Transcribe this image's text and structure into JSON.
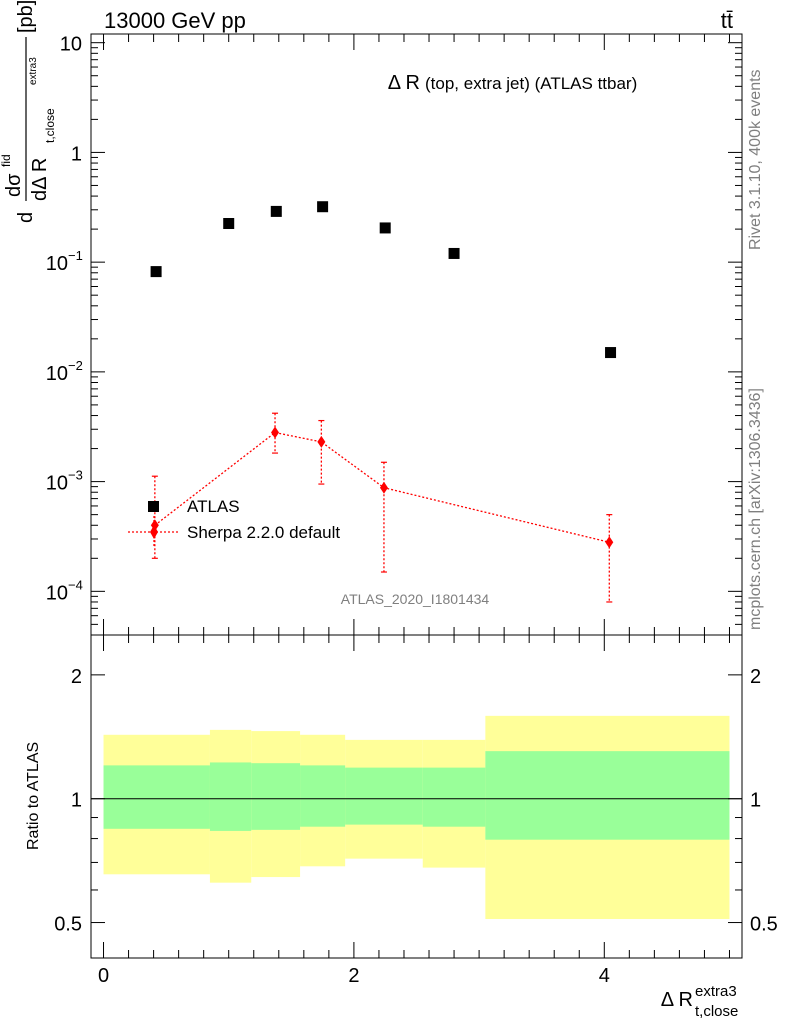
{
  "header": {
    "energy_label": "13000 GeV pp",
    "process_label": "tt̄",
    "rivet_label": "Rivet 3.1.10,  400k events",
    "mcplots_label": "mcplots.cern.ch [arXiv:1306.3436]"
  },
  "chart_data": [
    {
      "type": "scatter",
      "panel": "main",
      "title_main": "Δ R",
      "title_detail": "(top, extra jet) (ATLAS ttbar)",
      "ylabel": {
        "prefix": "d",
        "numerator": "dσ",
        "numerator_sup": "fid",
        "denominator": "dΔ R",
        "denominator_sub": "t,close",
        "denominator_sup": "extra3",
        "unit": "[pb]"
      },
      "yscale": "log",
      "ylim": [
        4e-05,
        12
      ],
      "xlim": [
        -0.1,
        5.1
      ],
      "y_ticks": [
        {
          "value": 10,
          "label": "10",
          "exp": ""
        },
        {
          "value": 1,
          "label": "1",
          "exp": ""
        },
        {
          "value": 0.1,
          "label": "10",
          "exp": "−1"
        },
        {
          "value": 0.01,
          "label": "10",
          "exp": "−2"
        },
        {
          "value": 0.001,
          "label": "10",
          "exp": "−3"
        },
        {
          "value": 0.0001,
          "label": "10",
          "exp": "−4"
        }
      ],
      "watermark": "ATLAS_2020_I1801434",
      "legend_position": "bottom-left",
      "series": [
        {
          "name": "ATLAS",
          "marker": "square",
          "color": "#000000",
          "x": [
            0.42,
            1.0,
            1.38,
            1.75,
            2.25,
            2.8,
            4.05
          ],
          "y": [
            0.082,
            0.225,
            0.29,
            0.32,
            0.205,
            0.12,
            0.015
          ]
        },
        {
          "name": "Sherpa 2.2.0 default",
          "marker": "diamond",
          "color": "#ff0000",
          "x": [
            0.41,
            1.37,
            1.74,
            2.24,
            4.04
          ],
          "y": [
            0.0004,
            0.0028,
            0.0023,
            0.00088,
            0.00028
          ],
          "y_err_low": [
            0.0002,
            0.00098,
            0.00135,
            0.00073,
            0.0002
          ],
          "y_err_high": [
            0.00072,
            0.0014,
            0.0013,
            0.00062,
            0.00022
          ]
        }
      ]
    },
    {
      "type": "area",
      "panel": "ratio",
      "ylabel": "Ratio to ATLAS",
      "xlabel_main": "Δ R",
      "xlabel_sup": "extra3",
      "xlabel_sub": "t,close",
      "yscale": "log",
      "ylim": [
        0.41,
        2.5
      ],
      "xlim": [
        -0.1,
        5.1
      ],
      "y_ticks": [
        {
          "value": 0.5,
          "label": "0.5"
        },
        {
          "value": 1,
          "label": "1"
        },
        {
          "value": 2,
          "label": "2"
        }
      ],
      "x_ticks": [
        {
          "value": 0,
          "label": "0"
        },
        {
          "value": 2,
          "label": "2"
        },
        {
          "value": 4,
          "label": "4"
        }
      ],
      "reference_line": 1,
      "bands": [
        {
          "x": [
            0.0,
            0.85
          ],
          "stat": [
            0.845,
            1.205
          ],
          "total": [
            0.655,
            1.43
          ]
        },
        {
          "x": [
            0.85,
            1.18
          ],
          "stat": [
            0.835,
            1.225
          ],
          "total": [
            0.625,
            1.47
          ]
        },
        {
          "x": [
            1.18,
            1.57
          ],
          "stat": [
            0.84,
            1.22
          ],
          "total": [
            0.645,
            1.46
          ]
        },
        {
          "x": [
            1.57,
            1.93
          ],
          "stat": [
            0.855,
            1.205
          ],
          "total": [
            0.685,
            1.43
          ]
        },
        {
          "x": [
            1.93,
            2.55
          ],
          "stat": [
            0.865,
            1.19
          ],
          "total": [
            0.715,
            1.39
          ]
        },
        {
          "x": [
            2.55,
            3.05
          ],
          "stat": [
            0.855,
            1.19
          ],
          "total": [
            0.68,
            1.39
          ]
        },
        {
          "x": [
            3.05,
            5.0
          ],
          "stat": [
            0.795,
            1.305
          ],
          "total": [
            0.51,
            1.59
          ]
        }
      ],
      "band_colors": {
        "stat": "#99ff99",
        "total": "#ffff99"
      }
    }
  ]
}
